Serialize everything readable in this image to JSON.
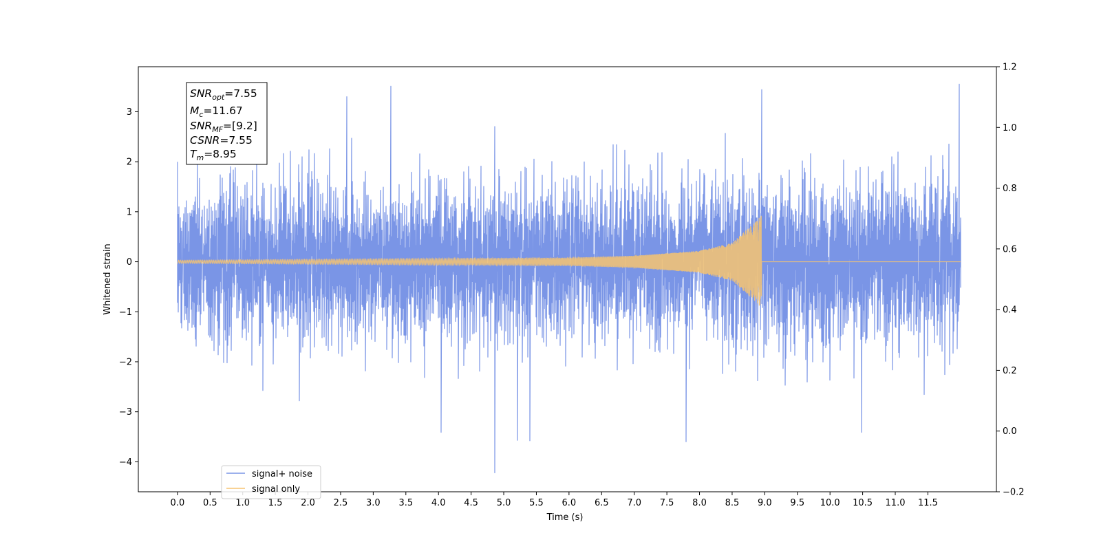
{
  "chart_data": {
    "type": "line",
    "title": "",
    "xlabel": "Time (s)",
    "ylabel": "Whitened strain",
    "xlim": [
      -0.6,
      12.55
    ],
    "ylim": [
      -4.6,
      3.9
    ],
    "y2lim": [
      -0.2,
      1.2
    ],
    "x_ticks": [
      "0.0",
      "0.5",
      "1.0",
      "1.5",
      "2.0",
      "2.5",
      "3.0",
      "3.5",
      "4.0",
      "4.5",
      "5.0",
      "5.5",
      "6.0",
      "6.5",
      "7.0",
      "7.5",
      "8.0",
      "8.5",
      "9.0",
      "9.5",
      "10.0",
      "10.5",
      "11.0",
      "11.5"
    ],
    "y_ticks": [
      "−4",
      "−3",
      "−2",
      "−1",
      "0",
      "1",
      "2",
      "3"
    ],
    "y2_ticks": [
      "−0.2",
      "0.0",
      "0.2",
      "0.4",
      "0.6",
      "0.8",
      "1.0",
      "1.2"
    ],
    "grid": false,
    "legend_position": "lower-left",
    "colors": {
      "noise": "#7a95e6",
      "signal": "#f7c470"
    },
    "series": [
      {
        "name": "signal+ noise",
        "kind": "noise",
        "x_range": [
          0.0,
          12.0
        ],
        "typical_amplitude": 1.7,
        "min": -4.22,
        "max": 3.55,
        "notable_spikes": [
          {
            "x": 4.86,
            "y": -4.22
          },
          {
            "x": 11.98,
            "y": 3.55
          },
          {
            "x": 3.27,
            "y": 3.51
          },
          {
            "x": 8.95,
            "y": 3.44
          },
          {
            "x": 2.6,
            "y": 3.3
          },
          {
            "x": 7.79,
            "y": -3.6
          },
          {
            "x": 5.21,
            "y": -3.57
          },
          {
            "x": 5.4,
            "y": -3.58
          },
          {
            "x": 10.48,
            "y": -3.41
          },
          {
            "x": 4.04,
            "y": -3.41
          }
        ]
      },
      {
        "name": "signal only",
        "kind": "chirp",
        "x_range": [
          0.0,
          12.0
        ],
        "merger_time": 8.95,
        "amplitude_envelope": [
          {
            "x": 0.0,
            "y": 0.03
          },
          {
            "x": 6.0,
            "y": 0.08
          },
          {
            "x": 7.0,
            "y": 0.12
          },
          {
            "x": 8.0,
            "y": 0.22
          },
          {
            "x": 8.5,
            "y": 0.38
          },
          {
            "x": 8.9,
            "y": 0.85
          },
          {
            "x": 8.95,
            "y": 1.0
          }
        ],
        "post_merger_value": 0.0
      }
    ],
    "annotations": {
      "snr_opt": "=7.55",
      "mc": "=11.67",
      "snr_mf": "=[9.2]",
      "csnr": "=7.55",
      "tm": "=8.95"
    }
  },
  "legend": {
    "noise_label": "signal+ noise",
    "signal_label": "signal only"
  }
}
